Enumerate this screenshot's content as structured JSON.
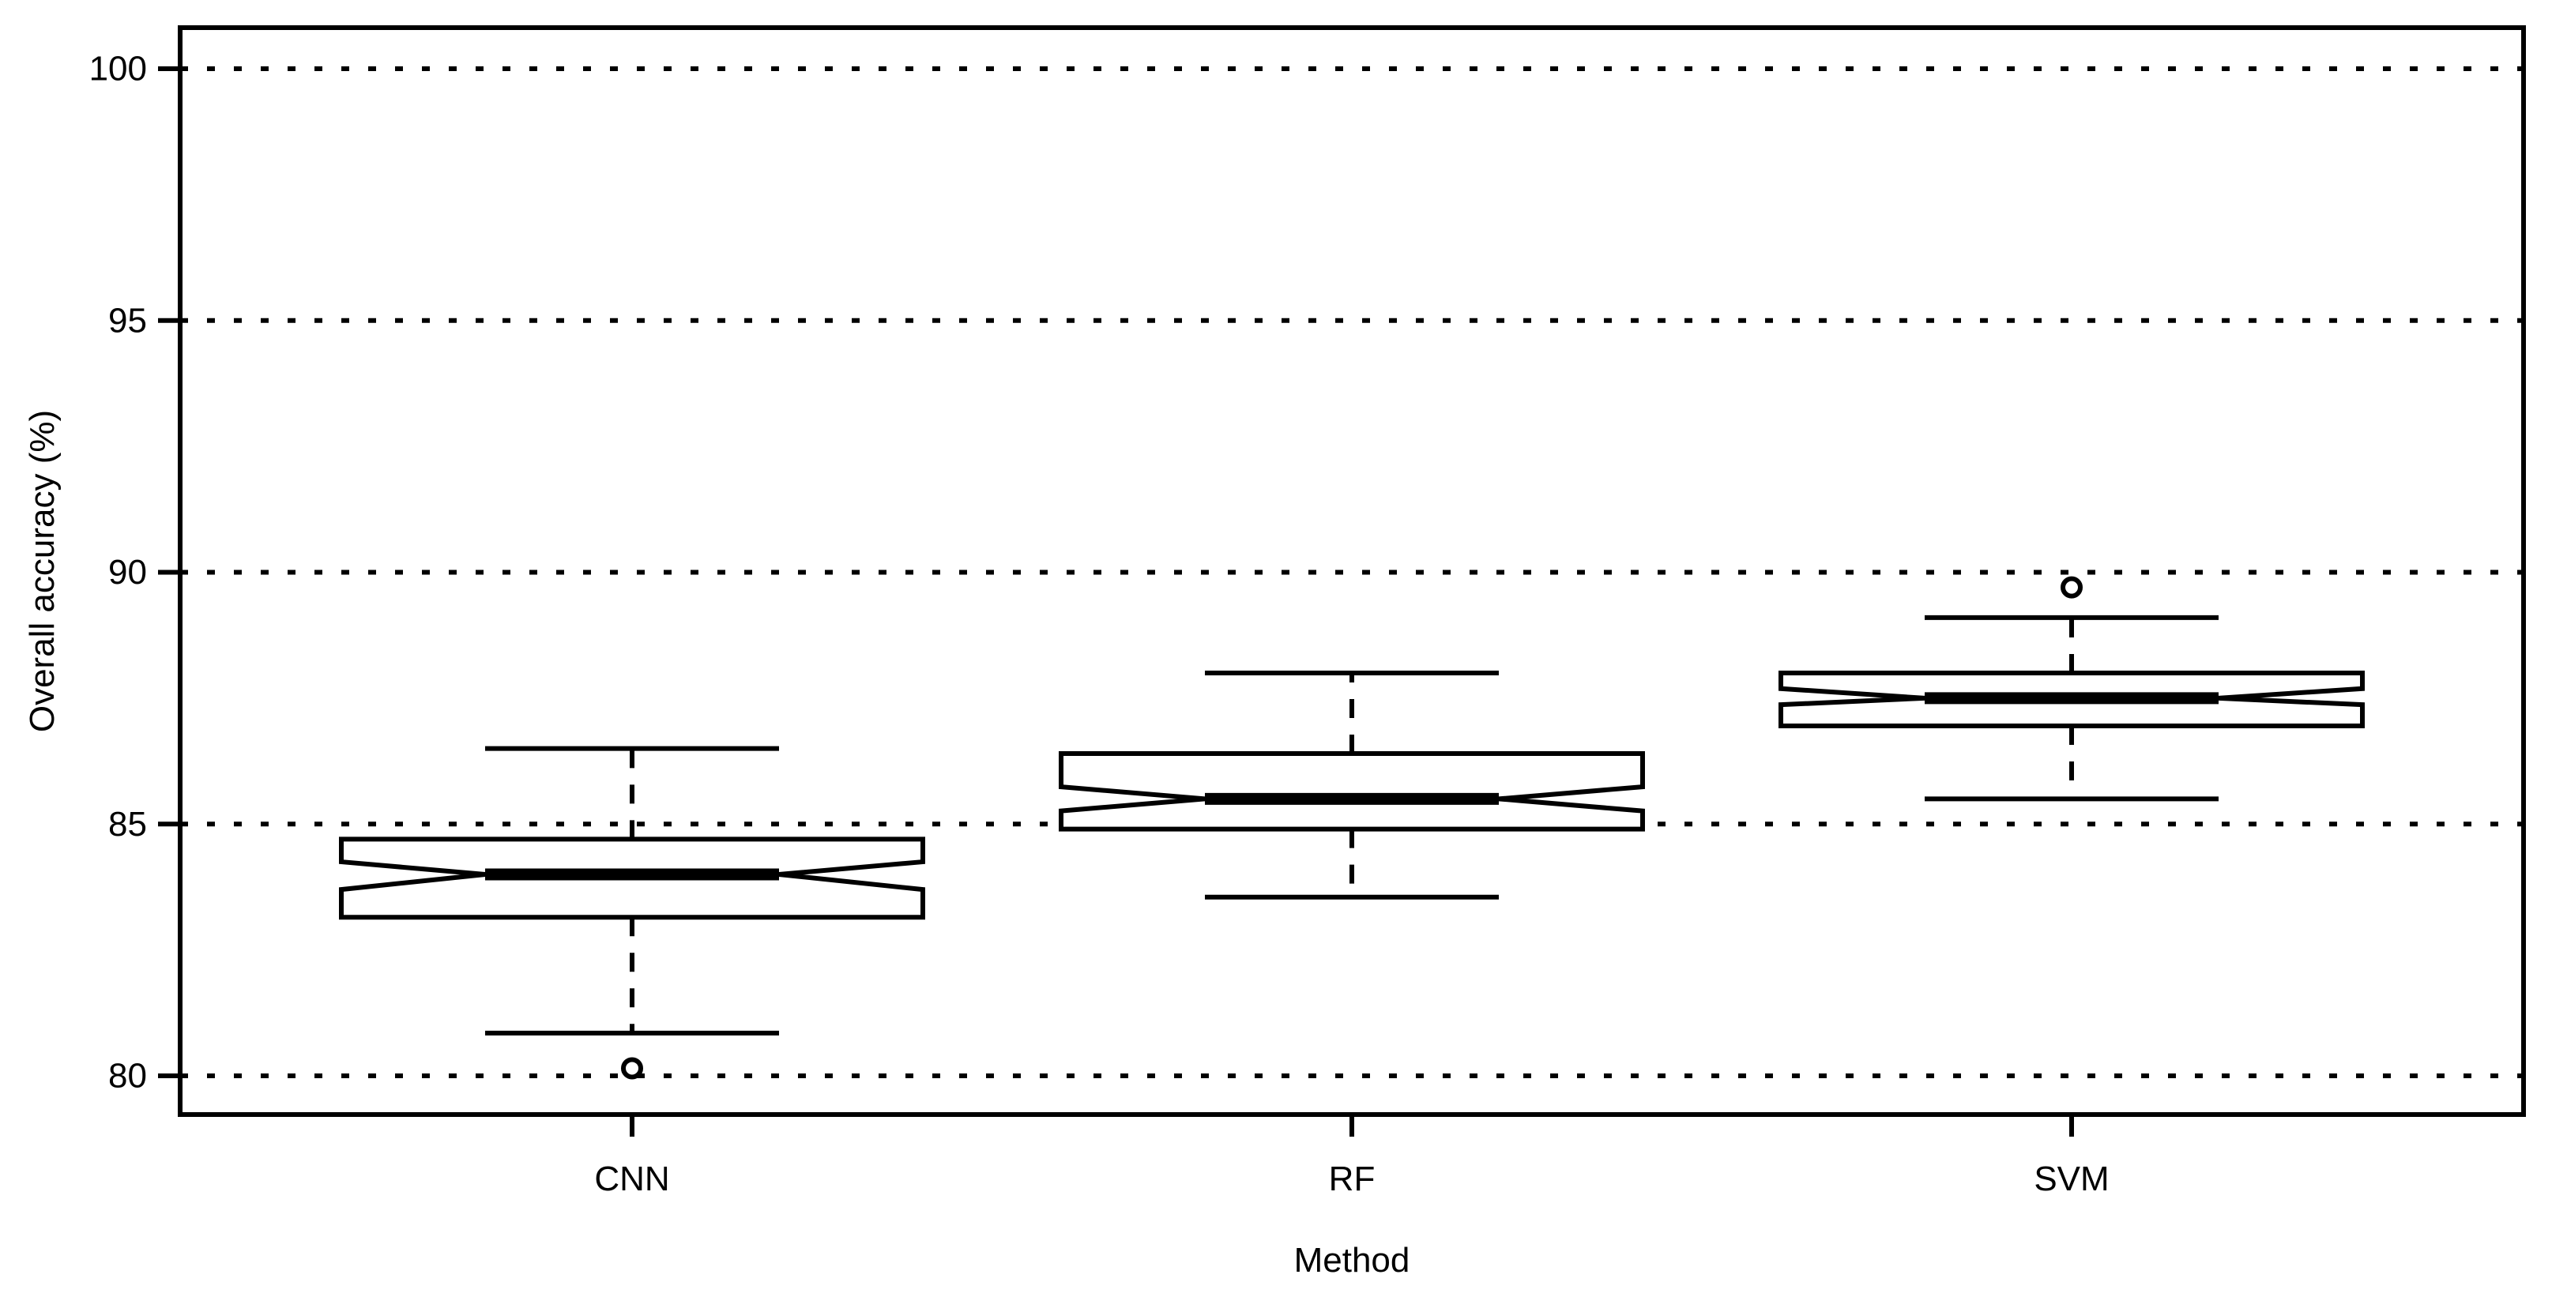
{
  "chart_data": {
    "type": "boxplot",
    "title": "",
    "xlabel": "Method",
    "ylabel": "Overall accuracy (%)",
    "categories": [
      "CNN",
      "RF",
      "SVM"
    ],
    "y_ticks": [
      80,
      85,
      90,
      95,
      100
    ],
    "ylim": [
      79.2,
      100.8
    ],
    "notched": true,
    "grid": {
      "horizontal": true,
      "style": "dotted",
      "at": [
        80,
        85,
        90,
        95,
        100
      ]
    },
    "legend": "none",
    "series": [
      {
        "name": "CNN",
        "whisker_low": 80.85,
        "q1": 83.15,
        "median": 84.0,
        "q3": 84.7,
        "whisker_high": 86.5,
        "notch_low": 83.7,
        "notch_high": 84.25,
        "outliers": [
          80.15
        ]
      },
      {
        "name": "RF",
        "whisker_low": 83.55,
        "q1": 84.9,
        "median": 85.5,
        "q3": 86.4,
        "whisker_high": 88.0,
        "notch_low": 85.26,
        "notch_high": 85.74,
        "outliers": []
      },
      {
        "name": "SVM",
        "whisker_low": 85.5,
        "q1": 86.95,
        "median": 87.5,
        "q3": 88.0,
        "whisker_high": 89.1,
        "notch_low": 87.37,
        "notch_high": 87.69,
        "outliers": [
          89.7
        ]
      }
    ],
    "colors": {
      "stroke": "#000000",
      "background": "#ffffff",
      "box_fill": "#ffffff"
    }
  }
}
